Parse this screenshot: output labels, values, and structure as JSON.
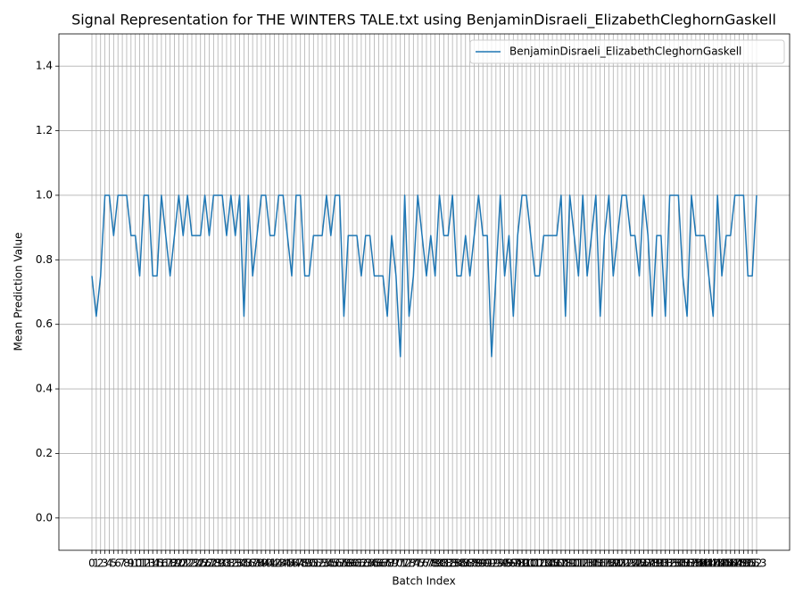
{
  "chart_data": {
    "type": "line",
    "title": "Signal Representation for THE WINTERS TALE.txt using BenjaminDisraeli_ElizabethCleghornGaskell",
    "xlabel": "Batch Index",
    "ylabel": "Mean Prediction Value",
    "x": [
      0,
      1,
      2,
      3,
      4,
      5,
      6,
      7,
      8,
      9,
      10,
      11,
      12,
      13,
      14,
      15,
      16,
      17,
      18,
      19,
      20,
      21,
      22,
      23,
      24,
      25,
      26,
      27,
      28,
      29,
      30,
      31,
      32,
      33,
      34,
      35,
      36,
      37,
      38,
      39,
      40,
      41,
      42,
      43,
      44,
      45,
      46,
      47,
      48,
      49,
      50,
      51,
      52,
      53,
      54,
      55,
      56,
      57,
      58,
      59,
      60,
      61,
      62,
      63,
      64,
      65,
      66,
      67,
      68,
      69,
      70,
      71,
      72,
      73,
      74,
      75,
      76,
      77,
      78,
      79,
      80,
      81,
      82,
      83,
      84,
      85,
      86,
      87,
      88,
      89,
      90,
      91,
      92,
      93,
      94,
      95,
      96,
      97,
      98,
      99,
      100,
      101,
      102,
      103,
      104,
      105,
      106,
      107,
      108,
      109,
      110,
      111,
      112,
      113,
      114,
      115,
      116,
      117,
      118,
      119,
      120,
      121,
      122,
      123,
      124,
      125,
      126,
      127,
      128,
      129,
      130,
      131,
      132,
      133,
      134,
      135,
      136,
      137,
      138,
      139,
      140,
      141,
      142,
      143,
      144,
      145,
      146,
      147,
      148,
      149,
      150,
      151,
      152,
      153
    ],
    "series": [
      {
        "name": "BenjaminDisraeli_ElizabethCleghornGaskell",
        "color": "#1f77b4",
        "values": [
          0.75,
          0.625,
          0.75,
          1.0,
          1.0,
          0.875,
          1.0,
          1.0,
          1.0,
          0.875,
          0.875,
          0.75,
          1.0,
          1.0,
          0.75,
          0.75,
          1.0,
          0.875,
          0.75,
          0.875,
          1.0,
          0.875,
          1.0,
          0.875,
          0.875,
          0.875,
          1.0,
          0.875,
          1.0,
          1.0,
          1.0,
          0.875,
          1.0,
          0.875,
          1.0,
          0.625,
          1.0,
          0.75,
          0.875,
          1.0,
          1.0,
          0.875,
          0.875,
          1.0,
          1.0,
          0.875,
          0.75,
          1.0,
          1.0,
          0.75,
          0.75,
          0.875,
          0.875,
          0.875,
          1.0,
          0.875,
          1.0,
          1.0,
          0.625,
          0.875,
          0.875,
          0.875,
          0.75,
          0.875,
          0.875,
          0.75,
          0.75,
          0.75,
          0.625,
          0.875,
          0.75,
          0.5,
          1.0,
          0.625,
          0.75,
          1.0,
          0.875,
          0.75,
          0.875,
          0.75,
          1.0,
          0.875,
          0.875,
          1.0,
          0.75,
          0.75,
          0.875,
          0.75,
          0.875,
          1.0,
          0.875,
          0.875,
          0.5,
          0.75,
          1.0,
          0.75,
          0.875,
          0.625,
          0.875,
          1.0,
          1.0,
          0.875,
          0.75,
          0.75,
          0.875,
          0.875,
          0.875,
          0.875,
          1.0,
          0.625,
          1.0,
          0.875,
          0.75,
          1.0,
          0.75,
          0.875,
          1.0,
          0.625,
          0.875,
          1.0,
          0.75,
          0.875,
          1.0,
          1.0,
          0.875,
          0.875,
          0.75,
          1.0,
          0.875,
          0.625,
          0.875,
          0.875,
          0.625,
          1.0,
          1.0,
          1.0,
          0.75,
          0.625,
          1.0,
          0.875,
          0.875,
          0.875,
          0.75,
          0.625,
          1.0,
          0.75,
          0.875,
          0.875,
          1.0,
          1.0,
          1.0,
          0.75,
          0.75,
          1.0
        ]
      }
    ],
    "xlim": [
      -7.6,
      160.6
    ],
    "xticks": [
      0,
      1,
      2,
      3,
      4,
      5,
      6,
      7,
      8,
      9,
      10,
      11,
      12,
      13,
      14,
      15,
      16,
      17,
      18,
      19,
      20,
      21,
      22,
      23,
      24,
      25,
      26,
      27,
      28,
      29,
      30,
      31,
      32,
      33,
      34,
      35,
      36,
      37,
      38,
      39,
      40,
      41,
      42,
      43,
      44,
      45,
      46,
      47,
      48,
      49,
      50,
      51,
      52,
      53,
      54,
      55,
      56,
      57,
      58,
      59,
      60,
      61,
      62,
      63,
      64,
      65,
      66,
      67,
      68,
      69,
      70,
      71,
      72,
      73,
      74,
      75,
      76,
      77,
      78,
      79,
      80,
      81,
      82,
      83,
      84,
      85,
      86,
      87,
      88,
      89,
      90,
      91,
      92,
      93,
      94,
      95,
      96,
      97,
      98,
      99,
      100,
      101,
      102,
      103,
      104,
      105,
      106,
      107,
      108,
      109,
      110,
      111,
      112,
      113,
      114,
      115,
      116,
      117,
      118,
      119,
      120,
      121,
      122,
      123,
      124,
      125,
      126,
      127,
      128,
      129,
      130,
      131,
      132,
      133,
      134,
      135,
      136,
      137,
      138,
      139,
      140,
      141,
      142,
      143,
      144,
      145,
      146,
      147,
      148,
      149,
      150,
      151,
      152,
      153
    ],
    "ylim": [
      -0.1,
      1.5
    ],
    "yticks": [
      {
        "value": 0,
        "label": "0.0"
      },
      0.2,
      0.4,
      0.6,
      0.8,
      {
        "value": 1,
        "label": "1.0"
      },
      1.2,
      1.4
    ],
    "grid": true,
    "legend": "upper right"
  }
}
